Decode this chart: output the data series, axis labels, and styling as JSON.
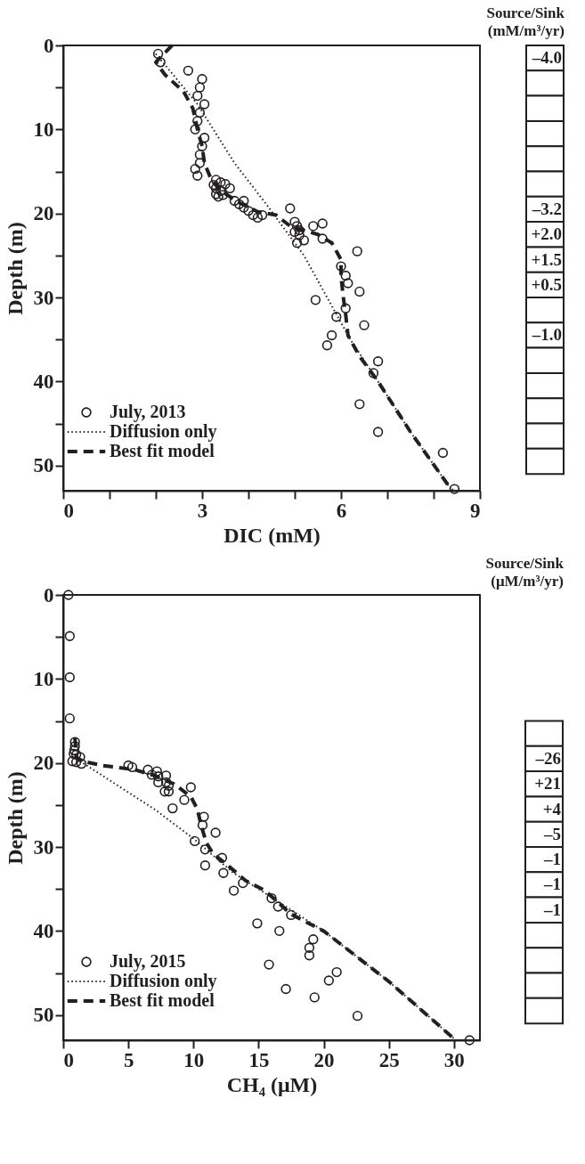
{
  "chart_data": [
    {
      "type": "scatter",
      "xlabel": "DIC (mM)",
      "ylabel": "Depth (m)",
      "xlim": [
        0,
        9
      ],
      "xticks": [
        0,
        {
          "value": 1,
          "label": null
        },
        {
          "value": 2,
          "label": null
        },
        3,
        {
          "value": 4,
          "label": null
        },
        {
          "value": 5,
          "label": null
        },
        6,
        {
          "value": 7,
          "label": null
        },
        {
          "value": 8,
          "label": null
        },
        9
      ],
      "ylim": [
        53,
        0
      ],
      "yticks": [
        0,
        {
          "value": 5,
          "label": null
        },
        10,
        {
          "value": 15,
          "label": null
        },
        20,
        {
          "value": 25,
          "label": null
        },
        30,
        {
          "value": 35,
          "label": null
        },
        40,
        {
          "value": 45,
          "label": null
        },
        50
      ],
      "legend": "bottom left",
      "annotations": [
        "Source/Sink",
        "(mM/m³/yr)",
        "–4.0",
        "–3.2",
        "+2.0",
        "+1.5",
        "+0.5",
        "–1.0"
      ],
      "series": [
        {
          "name": "July, 2013",
          "type": "scatter",
          "marker": "circle",
          "color": "#231f20",
          "x": [
            2.05,
            2.1,
            2.7,
            3.0,
            2.95,
            2.9,
            3.05,
            2.95,
            2.9,
            2.85,
            3.05,
            3.0,
            2.95,
            2.95,
            2.85,
            2.9,
            3.3,
            3.4,
            3.25,
            3.3,
            3.5,
            3.4,
            3.3,
            3.35,
            3.45,
            3.6,
            3.7,
            3.8,
            3.9,
            3.9,
            4.0,
            4.1,
            4.2,
            4.3,
            4.9,
            5.0,
            5.05,
            5.0,
            5.1,
            5.1,
            5.2,
            5.05,
            5.4,
            5.6,
            5.6,
            6.35,
            6.0,
            6.1,
            6.15,
            6.4,
            6.1,
            5.45,
            5.9,
            6.5,
            5.8,
            5.7,
            6.8,
            6.7,
            6.4,
            6.8,
            8.2,
            8.45
          ],
          "values": [
            1,
            2,
            3,
            4,
            5,
            6,
            7,
            8,
            9,
            10,
            11,
            12,
            13,
            14,
            14.7,
            15.5,
            16,
            16.3,
            16.6,
            17,
            16.5,
            17.3,
            17.7,
            18,
            17.8,
            17,
            18.5,
            18.9,
            18.5,
            19.3,
            19.7,
            20.2,
            20.5,
            20.2,
            19.4,
            21,
            21.5,
            22.2,
            22,
            22.6,
            23.2,
            23.5,
            21.5,
            21.2,
            23,
            24.5,
            26.3,
            27.4,
            28.3,
            29.3,
            31.3,
            30.3,
            32.3,
            33.3,
            34.5,
            35.7,
            37.6,
            39,
            42.7,
            46,
            48.5,
            52.8
          ]
        },
        {
          "name": "Diffusion only",
          "type": "line",
          "line_style": "dotted",
          "color": "#231f20",
          "x": [
            2.0,
            2.9,
            3.7,
            4.4,
            4.8,
            5.2,
            5.7,
            6.2,
            6.8,
            7.5,
            8.4
          ],
          "values": [
            1,
            7,
            14,
            19,
            22,
            25,
            30,
            35,
            40,
            46,
            53
          ]
        },
        {
          "name": "Best fit model",
          "type": "line",
          "line_style": "dashed",
          "color": "#231f20",
          "x": [
            2.35,
            2.0,
            2.2,
            2.6,
            2.8,
            2.9,
            3.0,
            3.05,
            3.2,
            3.4,
            3.8,
            4.2,
            4.6,
            4.9,
            5.2,
            5.5,
            5.8,
            6.0,
            6.0,
            6.05,
            6.1,
            6.15,
            6.4,
            6.8,
            7.5,
            8.4
          ],
          "values": [
            0,
            2,
            3.5,
            5.5,
            7.5,
            10,
            12,
            14,
            16,
            17.3,
            18.7,
            19.8,
            20.2,
            21.5,
            22,
            22.5,
            23.5,
            25.5,
            27.5,
            30,
            32,
            34.5,
            37,
            40,
            46,
            53
          ]
        }
      ]
    },
    {
      "type": "scatter",
      "xlabel": "CH₄ (μM)",
      "ylabel": "Depth (m)",
      "xlim": [
        0,
        32
      ],
      "xticks": [
        0,
        5,
        10,
        15,
        20,
        25,
        30
      ],
      "ylim": [
        53,
        0
      ],
      "yticks": [
        0,
        {
          "value": 5,
          "label": null
        },
        10,
        {
          "value": 15,
          "label": null
        },
        20,
        {
          "value": 25,
          "label": null
        },
        30,
        {
          "value": 35,
          "label": null
        },
        40,
        {
          "value": 45,
          "label": null
        },
        50
      ],
      "legend": "bottom left",
      "annotations": [
        "Source/Sink",
        "(μM/m³/yr)",
        "–26",
        "+21",
        "+4",
        "–5",
        "–1",
        "–1",
        "–1"
      ],
      "series": [
        {
          "name": "July, 2015",
          "type": "scatter",
          "marker": "circle",
          "color": "#231f20",
          "x": [
            0.4,
            0.5,
            0.5,
            0.5,
            0.9,
            0.9,
            0.85,
            0.8,
            1.0,
            0.7,
            1.0,
            1.3,
            1.4,
            5.0,
            5.3,
            6.5,
            6.8,
            7.2,
            7.3,
            7.3,
            7.9,
            7.9,
            8.1,
            8.1,
            7.8,
            9.8,
            9.3,
            8.4,
            10.8,
            10.7,
            11.7,
            10.1,
            10.9,
            10.9,
            12.2,
            12.3,
            13.1,
            13.8,
            16.0,
            16.5,
            17.5,
            14.9,
            16.6,
            19.2,
            18.9,
            18.9,
            15.8,
            21.0,
            20.4,
            17.1,
            19.3,
            22.6,
            31.2
          ],
          "values": [
            0,
            4.9,
            9.8,
            14.7,
            17.5,
            18,
            18.5,
            18.9,
            19,
            19.8,
            19.9,
            19.3,
            20.1,
            20.3,
            20.5,
            20.8,
            21.4,
            21,
            21.6,
            22.3,
            21.5,
            22.3,
            22.7,
            23.4,
            23.4,
            22.9,
            24.4,
            25.4,
            26.4,
            27.4,
            28.3,
            29.3,
            30.3,
            32.2,
            31.3,
            33.1,
            35.2,
            34.3,
            36.1,
            37.1,
            38.1,
            39.1,
            40,
            41,
            42,
            42.9,
            44,
            44.9,
            45.9,
            46.9,
            47.9,
            50.1,
            53
          ]
        },
        {
          "name": "Diffusion only",
          "type": "line",
          "line_style": "dotted",
          "color": "#231f20",
          "x": [
            0.9,
            1.5,
            4,
            7,
            10,
            13,
            15.5,
            20,
            25,
            30
          ],
          "values": [
            19,
            20,
            22.5,
            25.5,
            29,
            33,
            35.5,
            40,
            46,
            52.8
          ]
        },
        {
          "name": "Best fit model",
          "type": "line",
          "line_style": "dashed",
          "color": "#231f20",
          "x": [
            0.9,
            1.0,
            1.5,
            3,
            5.5,
            7,
            8.5,
            9.8,
            10.3,
            10.6,
            11,
            11.5,
            12.5,
            14,
            15.5,
            17.5,
            20,
            25,
            30
          ],
          "values": [
            17,
            19.3,
            19.8,
            20.3,
            20.8,
            21.5,
            22.5,
            24,
            25.5,
            27.5,
            29.5,
            30.8,
            32,
            34,
            35.2,
            38,
            40,
            46,
            52.8
          ]
        }
      ]
    }
  ]
}
